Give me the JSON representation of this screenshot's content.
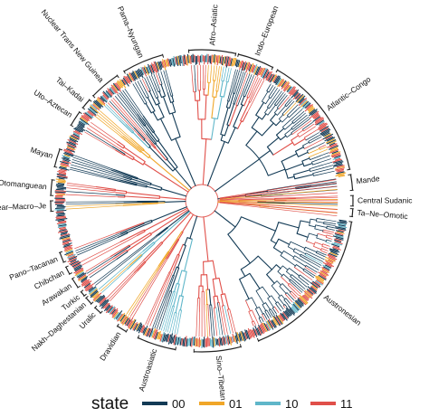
{
  "figure": {
    "center": {
      "x": 223,
      "y": 222
    },
    "legend": {
      "title": "state",
      "items": [
        {
          "label": "00",
          "color": "#123a55"
        },
        {
          "label": "01",
          "color": "#f0a628"
        },
        {
          "label": "10",
          "color": "#5fb6c9"
        },
        {
          "label": "11",
          "color": "#e04f49"
        }
      ]
    },
    "families": [
      {
        "name": "Afro–Asiatic",
        "start_deg": 355,
        "end_deg": 13,
        "labelSide": "out"
      },
      {
        "name": "Indo–European",
        "start_deg": 14,
        "end_deg": 28,
        "labelSide": "out"
      },
      {
        "name": "Atlantic–Congo",
        "start_deg": 30,
        "end_deg": 78,
        "labelSide": "out"
      },
      {
        "name": "Mande",
        "start_deg": 80,
        "end_deg": 86,
        "labelSide": "out"
      },
      {
        "name": "Central Sudanic",
        "start_deg": 88,
        "end_deg": 92,
        "labelSide": "out"
      },
      {
        "name": "Ta–Ne–Omotic",
        "start_deg": 93,
        "end_deg": 96,
        "labelSide": "out"
      },
      {
        "name": "Austronesian",
        "start_deg": 98,
        "end_deg": 158,
        "labelSide": "out"
      },
      {
        "name": "Sino–Tibetan",
        "start_deg": 165,
        "end_deg": 183,
        "labelSide": "out"
      },
      {
        "name": "Austroasiatic",
        "start_deg": 190,
        "end_deg": 205,
        "labelSide": "out"
      },
      {
        "name": "Dravidian",
        "start_deg": 210,
        "end_deg": 214,
        "labelSide": "out"
      },
      {
        "name": "Uralic",
        "start_deg": 222,
        "end_deg": 225,
        "labelSide": "out"
      },
      {
        "name": "Nakh–Daghestanian",
        "start_deg": 227,
        "end_deg": 230,
        "labelSide": "out"
      },
      {
        "name": "Turkic",
        "start_deg": 231,
        "end_deg": 233,
        "labelSide": "out"
      },
      {
        "name": "Arawakan",
        "start_deg": 235,
        "end_deg": 239,
        "labelSide": "out"
      },
      {
        "name": "Chibchan",
        "start_deg": 241,
        "end_deg": 244,
        "labelSide": "out"
      },
      {
        "name": "Pano–Tacanan",
        "start_deg": 246,
        "end_deg": 250,
        "labelSide": "out"
      },
      {
        "name": "Nuclear–Macro–Je",
        "start_deg": 266,
        "end_deg": 270,
        "labelSide": "out"
      },
      {
        "name": "Otomanguean",
        "start_deg": 272,
        "end_deg": 278,
        "labelSide": "out"
      },
      {
        "name": "Mayan",
        "start_deg": 283,
        "end_deg": 290,
        "labelSide": "out"
      },
      {
        "name": "Uto–Aztecan",
        "start_deg": 300,
        "end_deg": 306,
        "labelSide": "out"
      },
      {
        "name": "Tai–Kadai",
        "start_deg": 308,
        "end_deg": 312,
        "labelSide": "out"
      },
      {
        "name": "Nuclear Trans New Guinea",
        "start_deg": 314,
        "end_deg": 326,
        "labelSide": "out"
      },
      {
        "name": "Pama–Nyungan",
        "start_deg": 329,
        "end_deg": 345,
        "labelSide": "out"
      }
    ]
  }
}
